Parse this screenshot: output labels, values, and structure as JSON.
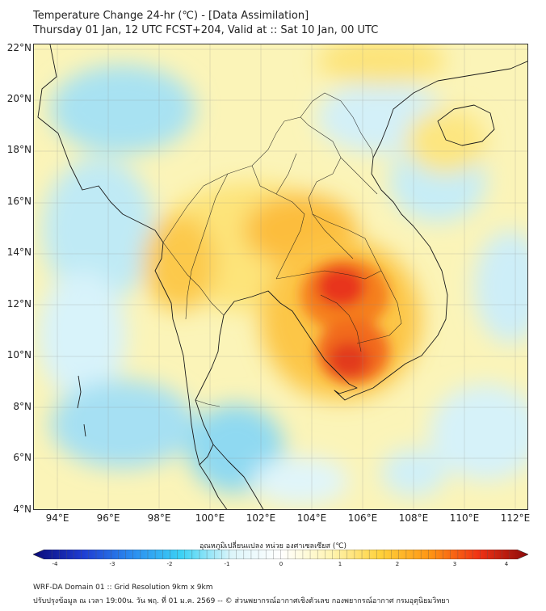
{
  "title_line1": "Temperature Change 24-hr (℃) - [Data Assimilation]",
  "title_line2": "Thursday 01 Jan, 12 UTC FCST+204, Valid at :: Sat 10 Jan, 00 UTC",
  "map": {
    "lat_labels": [
      "22°N",
      "20°N",
      "18°N",
      "16°N",
      "14°N",
      "12°N",
      "10°N",
      "8°N",
      "6°N",
      "4°N"
    ],
    "lon_labels": [
      "94°E",
      "96°E",
      "98°E",
      "100°E",
      "102°E",
      "104°E",
      "106°E",
      "108°E",
      "110°E",
      "112°E"
    ],
    "colors": {
      "land_line": "#1a1a1a",
      "base": "#fbf4b8"
    }
  },
  "colorbar": {
    "title": "อุณหภูมิเปลี่ยนแปลง หน่วย องศาเซลเซียส (℃)",
    "labels": [
      "-4",
      "-3",
      "-2",
      "-1",
      "0",
      "1",
      "2",
      "3",
      "4"
    ],
    "colors": [
      "#0a0a78",
      "#1e3cd2",
      "#2a8cf0",
      "#3cd2f5",
      "#dcf5fa",
      "#ffffff",
      "#fff5b4",
      "#ffd23c",
      "#ff9614",
      "#f03214",
      "#8c0a0a"
    ]
  },
  "footer_line1": "WRF-DA Domain 01 :: Grid Resolution 9km x 9km",
  "footer_line2": "ปรับปรุงข้อมูล ณ เวลา 19:00น. วัน พฤ. ที่ 01 ม.ค. 2569 -- © ส่วนพยากรณ์อากาศเชิงตัวเลข กองพยากรณ์อากาศ กรมอุตุนิยมวิทยา"
}
